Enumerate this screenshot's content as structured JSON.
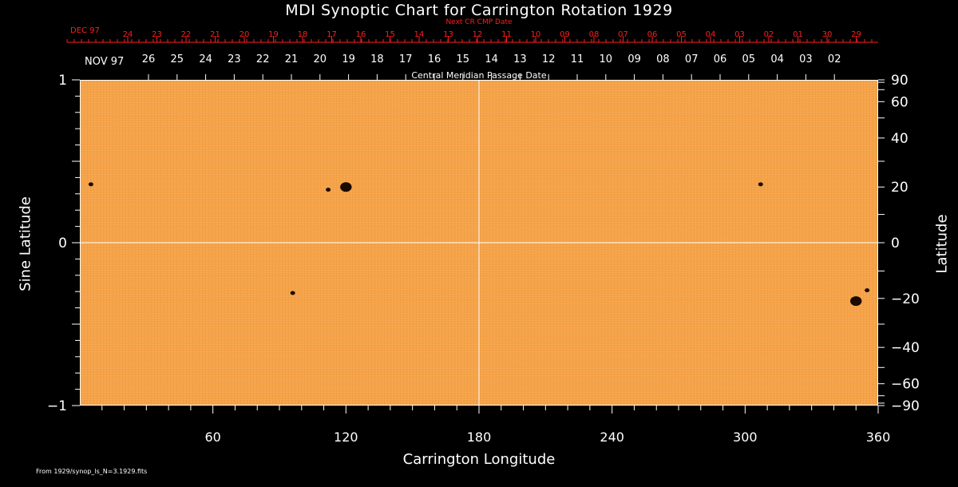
{
  "title": "MDI Synoptic Chart for Carrington Rotation 1929",
  "next_cr_label": "Next CR CMP Date",
  "cmp_label": "Central Meridian Passage Date",
  "footer": "From 1929/synop_ls_N=3.1929.fits",
  "top_red_month": "DEC 97",
  "top_red_dates": [
    "24",
    "23",
    "22",
    "21",
    "20",
    "19",
    "18",
    "17",
    "16",
    "15",
    "14",
    "13",
    "12",
    "11",
    "10",
    "09",
    "08",
    "07",
    "06",
    "05",
    "04",
    "03",
    "02",
    "01",
    "30",
    "29"
  ],
  "top_white_month": "NOV 97",
  "top_white_dates": [
    "26",
    "25",
    "24",
    "23",
    "22",
    "21",
    "20",
    "19",
    "18",
    "17",
    "16",
    "15",
    "14",
    "13",
    "12",
    "11",
    "10",
    "09",
    "08",
    "07",
    "06",
    "05",
    "04",
    "03",
    "02"
  ],
  "colors": {
    "plot_bg": "#f5a34a",
    "red_axis": "#ff1e1e",
    "spot": "#1a0a00"
  },
  "chart_data": {
    "type": "heatmap",
    "title": "MDI Synoptic Chart for Carrington Rotation 1929",
    "xlabel": "Carrington Longitude",
    "ylabel_left": "Sine Latitude",
    "ylabel_right": "Latitude",
    "xlim": [
      0,
      360
    ],
    "ylim": [
      -1,
      1
    ],
    "x_ticks": [
      60,
      120,
      180,
      240,
      300,
      360
    ],
    "y_ticks_left": [
      {
        "value": 1,
        "label": "1"
      },
      {
        "value": 0,
        "label": "0"
      },
      {
        "value": -1,
        "label": "−1"
      }
    ],
    "y_ticks_right": [
      90,
      60,
      40,
      20,
      0,
      -20,
      -40,
      -60,
      -90
    ],
    "y_tick_labels_right": [
      "90",
      "60",
      "40",
      "20",
      "0",
      "−20",
      "−40",
      "−60",
      "−90"
    ],
    "gridlines": {
      "longitude": 180,
      "sine_latitude": 0
    },
    "sunspots": [
      {
        "lon": 120,
        "lat": 20,
        "size": "large"
      },
      {
        "lon": 112,
        "lat": 19,
        "size": "small"
      },
      {
        "lon": 96,
        "lat": -18,
        "size": "small"
      },
      {
        "lon": 307,
        "lat": 21,
        "size": "small"
      },
      {
        "lon": 350,
        "lat": -21,
        "size": "large"
      },
      {
        "lon": 355,
        "lat": -17,
        "size": "small"
      },
      {
        "lon": 5,
        "lat": 21,
        "size": "small"
      }
    ]
  }
}
